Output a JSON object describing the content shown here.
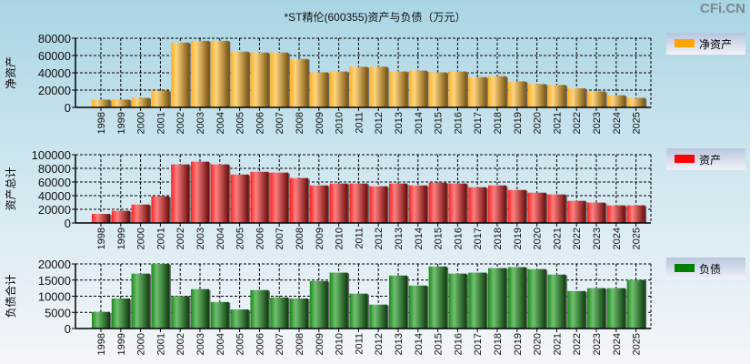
{
  "header": {
    "title": "*ST精伦(600355)资产与负债（万元）",
    "brand": "CFi.CN"
  },
  "chart_data": [
    {
      "type": "bar",
      "title": "净资产",
      "ylabel": "净资产",
      "legend": "净资产",
      "color": "#ffa500",
      "ylim": [
        0,
        80000
      ],
      "yticks": [
        0,
        20000,
        40000,
        60000,
        80000
      ],
      "categories": [
        "1998",
        "1999",
        "2000",
        "2001",
        "2002",
        "2003",
        "2004",
        "2005",
        "2006",
        "2007",
        "2008",
        "2009",
        "2010",
        "2011",
        "2012",
        "2013",
        "2014",
        "2015",
        "2016",
        "2017",
        "2018",
        "2019",
        "2020",
        "2021",
        "2022",
        "2023",
        "2024",
        "2025"
      ],
      "values": [
        9000,
        9000,
        11000,
        19500,
        75000,
        77000,
        77000,
        64500,
        63500,
        63500,
        56000,
        40500,
        41500,
        47000,
        47000,
        41500,
        42500,
        40500,
        41500,
        35000,
        36000,
        30000,
        27000,
        26000,
        22000,
        18500,
        14000,
        11000
      ]
    },
    {
      "type": "bar",
      "title": "资产",
      "ylabel": "资产总计",
      "legend": "资产",
      "color": "#ff0000",
      "ylim": [
        0,
        100000
      ],
      "yticks": [
        0,
        20000,
        40000,
        60000,
        80000,
        100000
      ],
      "categories": [
        "1998",
        "1999",
        "2000",
        "2001",
        "2002",
        "2003",
        "2004",
        "2005",
        "2006",
        "2007",
        "2008",
        "2009",
        "2010",
        "2011",
        "2012",
        "2013",
        "2014",
        "2015",
        "2016",
        "2017",
        "2018",
        "2019",
        "2020",
        "2021",
        "2022",
        "2023",
        "2024",
        "2025"
      ],
      "values": [
        13300,
        17800,
        27000,
        39000,
        85800,
        89800,
        85800,
        71000,
        75000,
        73800,
        65800,
        55000,
        57800,
        57800,
        53800,
        57800,
        55000,
        59000,
        57800,
        52400,
        55000,
        48400,
        44400,
        41800,
        32400,
        29800,
        25800,
        25800
      ]
    },
    {
      "type": "bar",
      "title": "负债",
      "ylabel": "负债合计",
      "legend": "负债",
      "color": "#008000",
      "ylim": [
        0,
        20000
      ],
      "yticks": [
        0,
        5000,
        10000,
        15000,
        20000
      ],
      "categories": [
        "1998",
        "1999",
        "2000",
        "2001",
        "2002",
        "2003",
        "2004",
        "2005",
        "2006",
        "2007",
        "2008",
        "2009",
        "2010",
        "2011",
        "2012",
        "2013",
        "2014",
        "2015",
        "2016",
        "2017",
        "2018",
        "2019",
        "2020",
        "2021",
        "2022",
        "2023",
        "2024",
        "2025"
      ],
      "values": [
        5100,
        9300,
        17000,
        20000,
        10000,
        12200,
        8200,
        5900,
        11900,
        9600,
        9300,
        14700,
        17300,
        10800,
        7400,
        16400,
        13300,
        19200,
        17000,
        17300,
        18700,
        19000,
        18400,
        16700,
        11600,
        12500,
        12500,
        15000
      ]
    }
  ]
}
